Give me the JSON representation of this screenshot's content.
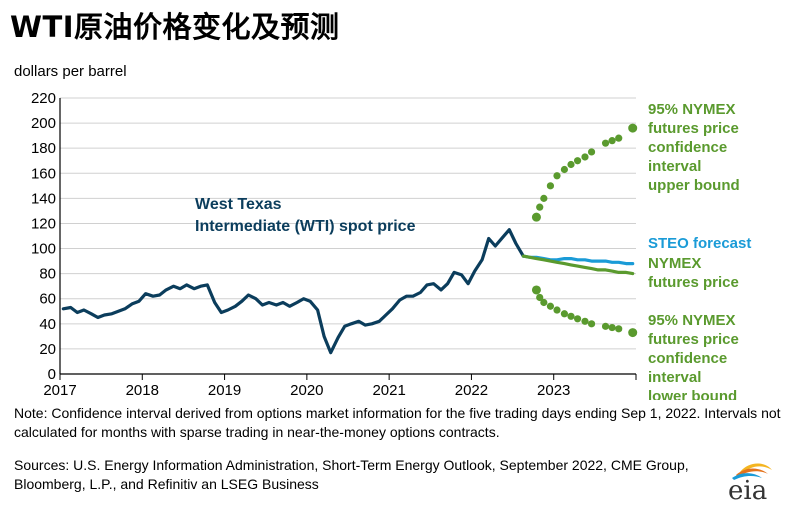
{
  "title": "WTI原油价格变化及预测",
  "ylabel": "dollars per barrel",
  "note": "Note: Confidence interval derived from options market information for the five trading days ending Sep 1, 2022. Intervals not calculated for months with sparse trading in near-the-money options contracts.",
  "sources": "Sources: U.S. Energy Information Administration, Short-Term Energy Outlook, September 2022, CME Group, Bloomberg, L.P., and Refinitiv an LSEG Business",
  "logo": {
    "text": "eia",
    "icon": "eia-logo"
  },
  "colors": {
    "wti": "#0b3d5c",
    "steo": "#1a9bd7",
    "nymex": "#5a9a2e"
  },
  "chart_data": {
    "type": "line",
    "xlim": [
      2017,
      2024
    ],
    "ylim": [
      0,
      220
    ],
    "yticks": [
      0,
      20,
      40,
      60,
      80,
      100,
      120,
      140,
      160,
      180,
      200,
      220
    ],
    "xticks": [
      "2017",
      "2018",
      "2019",
      "2020",
      "2021",
      "2022",
      "2023"
    ],
    "grid": true,
    "annotations": {
      "wti": [
        "West Texas",
        "Intermediate (WTI) spot price"
      ],
      "upper": [
        "95% NYMEX",
        "futures price",
        "confidence",
        "interval",
        "upper bound"
      ],
      "steo": [
        "STEO forecast"
      ],
      "nymex": [
        "NYMEX",
        "futures price"
      ],
      "lower": [
        "95% NYMEX",
        "futures price",
        "confidence",
        "interval",
        "lower bound"
      ]
    },
    "series": [
      {
        "key": "wti",
        "x": [
          2017.04,
          2017.13,
          2017.21,
          2017.29,
          2017.38,
          2017.46,
          2017.54,
          2017.63,
          2017.71,
          2017.79,
          2017.88,
          2017.96,
          2018.04,
          2018.13,
          2018.21,
          2018.29,
          2018.38,
          2018.46,
          2018.54,
          2018.63,
          2018.71,
          2018.79,
          2018.88,
          2018.96,
          2019.04,
          2019.13,
          2019.21,
          2019.29,
          2019.38,
          2019.46,
          2019.54,
          2019.63,
          2019.71,
          2019.79,
          2019.88,
          2019.96,
          2020.04,
          2020.13,
          2020.21,
          2020.29,
          2020.38,
          2020.46,
          2020.54,
          2020.63,
          2020.71,
          2020.79,
          2020.88,
          2020.96,
          2021.04,
          2021.13,
          2021.21,
          2021.29,
          2021.38,
          2021.46,
          2021.54,
          2021.63,
          2021.71,
          2021.79,
          2021.88,
          2021.96,
          2022.04,
          2022.13,
          2022.21,
          2022.29,
          2022.38,
          2022.46,
          2022.54,
          2022.63
        ],
        "y": [
          52,
          53,
          49,
          51,
          48,
          45,
          47,
          48,
          50,
          52,
          56,
          58,
          64,
          62,
          63,
          67,
          70,
          68,
          71,
          68,
          70,
          71,
          57,
          49,
          51,
          54,
          58,
          63,
          60,
          55,
          57,
          55,
          57,
          54,
          57,
          60,
          58,
          51,
          30,
          17,
          29,
          38,
          40,
          42,
          39,
          40,
          42,
          47,
          52,
          59,
          62,
          62,
          65,
          71,
          72,
          67,
          72,
          81,
          79,
          72,
          82,
          91,
          108,
          102,
          109,
          115,
          104,
          94
        ]
      },
      {
        "key": "steo",
        "x": [
          2022.63,
          2022.71,
          2022.79,
          2022.88,
          2022.96,
          2023.04,
          2023.13,
          2023.21,
          2023.29,
          2023.38,
          2023.46,
          2023.54,
          2023.63,
          2023.71,
          2023.79,
          2023.88,
          2023.96
        ],
        "y": [
          94,
          93,
          93,
          92,
          91,
          91,
          92,
          92,
          91,
          91,
          90,
          90,
          90,
          89,
          89,
          88,
          88
        ]
      },
      {
        "key": "nymex",
        "x": [
          2022.63,
          2022.71,
          2022.79,
          2022.88,
          2022.96,
          2023.04,
          2023.13,
          2023.21,
          2023.29,
          2023.38,
          2023.46,
          2023.54,
          2023.63,
          2023.71,
          2023.79,
          2023.88,
          2023.96
        ],
        "y": [
          94,
          93,
          92,
          91,
          90,
          89,
          88,
          87,
          86,
          85,
          84,
          83,
          83,
          82,
          81,
          81,
          80
        ]
      },
      {
        "key": "upper",
        "x": [
          2022.79,
          2022.83,
          2022.88,
          2022.96,
          2023.04,
          2023.13,
          2023.21,
          2023.29,
          2023.38,
          2023.46,
          2023.63,
          2023.71,
          2023.79,
          2023.96
        ],
        "y": [
          125,
          133,
          140,
          150,
          158,
          163,
          167,
          170,
          173,
          177,
          184,
          186,
          188,
          196
        ]
      },
      {
        "key": "lower",
        "x": [
          2022.79,
          2022.83,
          2022.88,
          2022.96,
          2023.04,
          2023.13,
          2023.21,
          2023.29,
          2023.38,
          2023.46,
          2023.63,
          2023.71,
          2023.79,
          2023.96
        ],
        "y": [
          67,
          61,
          57,
          54,
          51,
          48,
          46,
          44,
          42,
          40,
          38,
          37,
          36,
          33
        ]
      }
    ]
  }
}
